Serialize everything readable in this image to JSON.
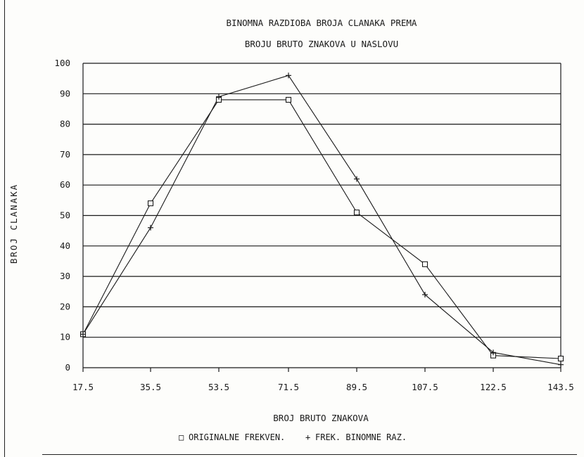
{
  "chart_data": {
    "type": "line",
    "title_lines": [
      "BINOMNA RAZDIOBA BROJA CLANAKA PREMA",
      "BROJU BRUTO ZNAKOVA U NASLOVU"
    ],
    "xlabel": "BROJ BRUTO ZNAKOVA",
    "ylabel": "BROJ CLANAKA",
    "categories": [
      "17.5",
      "35.5",
      "53.5",
      "71.5",
      "89.5",
      "107.5",
      "122.5",
      "143.5"
    ],
    "yticks": [
      "100",
      "90",
      "80",
      "70",
      "60",
      "50",
      "40",
      "30",
      "20",
      "10",
      "0"
    ],
    "ylim": [
      0,
      100
    ],
    "grid": "horizontal",
    "legend_position": "bottom",
    "series": [
      {
        "name": "ORIGINALNE FREKVEN.",
        "marker": "square",
        "symbol": "□",
        "values": [
          11,
          54,
          88,
          88,
          51,
          34,
          4,
          3
        ]
      },
      {
        "name": "FREK. BINOMNE RAZ.",
        "marker": "plus",
        "symbol": "+",
        "values": [
          11,
          46,
          89,
          96,
          62,
          24,
          5,
          1
        ]
      }
    ]
  }
}
